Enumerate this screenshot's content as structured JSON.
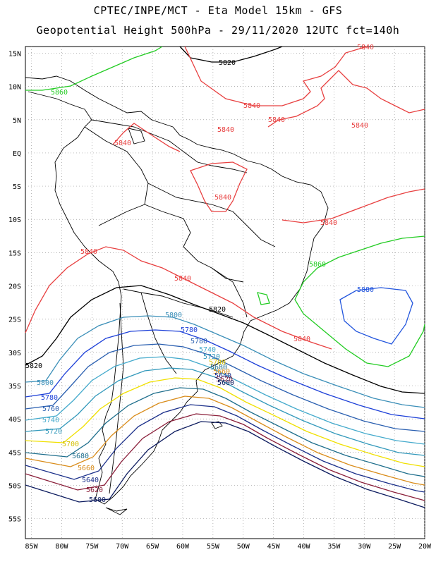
{
  "header": {
    "line1": "CPTEC/INPE/MCT -  Eta Model 15km - GFS",
    "line2": "Geopotential Height 500hPa - 29/11/2020 12UTC fct=140h"
  },
  "map": {
    "lon_range": [
      -86,
      -20
    ],
    "lat_range": [
      -58,
      16
    ],
    "lat_ticks": [
      "15N",
      "10N",
      "5N",
      "EQ",
      "5S",
      "10S",
      "15S",
      "20S",
      "25S",
      "30S",
      "35S",
      "40S",
      "45S",
      "50S",
      "55S"
    ],
    "lon_ticks": [
      "85W",
      "80W",
      "75W",
      "70W",
      "65W",
      "60W",
      "55W",
      "50W",
      "45W",
      "40W",
      "35W",
      "30W",
      "25W",
      "20W"
    ],
    "colors": {
      "5600": "#0b1a5e",
      "5620": "#8a1f3a",
      "5640": "#1a2f8a",
      "5660": "#d98c1a",
      "5680": "#1e6e8c",
      "5700": "#f0e000",
      "5720": "#3399bb",
      "5740": "#44aacc",
      "5760": "#2a5fb0",
      "5780": "#1c3fd8",
      "5800": "#3b8fb8",
      "5820": "#000000",
      "5840": "#e84040",
      "5860": "#22cc22",
      "5880": "#2255dd"
    },
    "contour_labels": {
      "l5860_nw": "5860",
      "l5820_n": "5820",
      "l5840_ne": "5840",
      "l5840_a": "5840",
      "l5840_b": "5840",
      "l5840_c": "5840",
      "l5840_d": "5840",
      "l5840_e": "5840",
      "l5840_f": "5840",
      "l5840_g": "5840",
      "l5840_h": "5840",
      "l5840_i": "5840",
      "l5860_e": "5860",
      "l5880": "5880",
      "l5820_c": "5820",
      "l5820_w": "5820",
      "l5800_a": "5800",
      "l5780_a": "5780",
      "l5780_b": "5780",
      "l5740_a": "5740",
      "l5720_a": "5720",
      "l5700_a": "5700",
      "l5680_a": "5680",
      "l5660_a": "5660",
      "l5640_a": "5640",
      "l5620_a": "5620",
      "l5600_a": "5600",
      "l5800_w": "5800",
      "l5780_w": "5780",
      "l5760_w": "5760",
      "l5740_w": "5740",
      "l5720_w": "5720",
      "l5700_w": "5700",
      "l5680_w": "5680",
      "l5660_w": "5660",
      "l5640_w": "5640",
      "l5620_w": "5620",
      "l5600_w": "5600"
    }
  }
}
